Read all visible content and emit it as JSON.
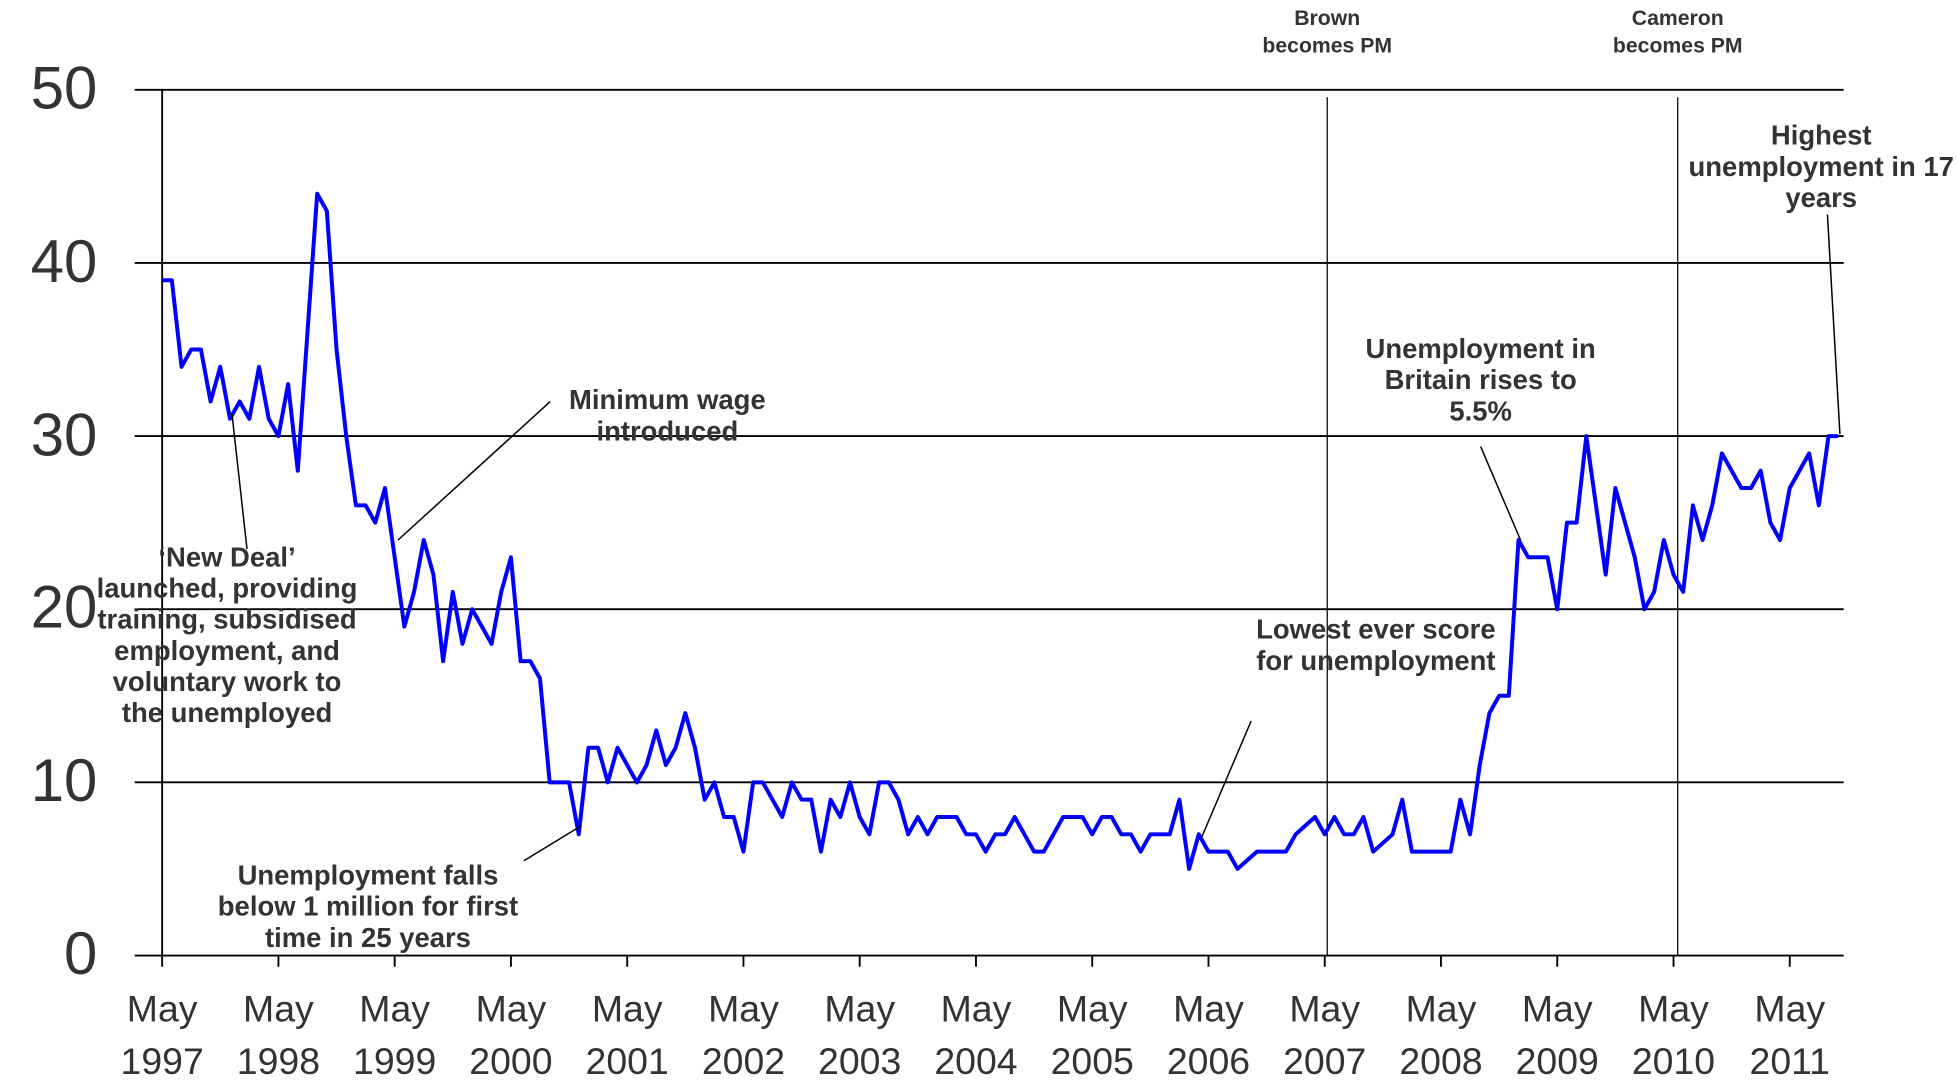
{
  "chart_data": {
    "type": "line",
    "categories": [
      "May 1997",
      null,
      null,
      null,
      null,
      null,
      null,
      null,
      null,
      null,
      null,
      null,
      "May 1998",
      null,
      null,
      null,
      null,
      null,
      null,
      null,
      null,
      null,
      null,
      null,
      "May 1999",
      null,
      null,
      null,
      null,
      null,
      null,
      null,
      null,
      null,
      null,
      null,
      "May 2000",
      null,
      null,
      null,
      null,
      null,
      null,
      null,
      null,
      null,
      null,
      null,
      "May 2001",
      null,
      null,
      null,
      null,
      null,
      null,
      null,
      null,
      null,
      null,
      null,
      "May 2002",
      null,
      null,
      null,
      null,
      null,
      null,
      null,
      null,
      null,
      null,
      null,
      "May 2003",
      null,
      null,
      null,
      null,
      null,
      null,
      null,
      null,
      null,
      null,
      null,
      "May 2004",
      null,
      null,
      null,
      null,
      null,
      null,
      null,
      null,
      null,
      null,
      null,
      "May 2005",
      null,
      null,
      null,
      null,
      null,
      null,
      null,
      null,
      null,
      null,
      null,
      "May 2006",
      null,
      null,
      null,
      null,
      null,
      null,
      null,
      null,
      null,
      null,
      null,
      "May 2007",
      null,
      null,
      null,
      null,
      null,
      null,
      null,
      null,
      null,
      null,
      null,
      "May 2008",
      null,
      null,
      null,
      null,
      null,
      null,
      null,
      null,
      null,
      null,
      null,
      "May 2009",
      null,
      null,
      null,
      null,
      null,
      null,
      null,
      null,
      null,
      null,
      null,
      "May 2010",
      null,
      null,
      null,
      null,
      null,
      null,
      null,
      null,
      null,
      null,
      null,
      "May 2011",
      null,
      null,
      null,
      null,
      null
    ],
    "series": [
      {
        "color": "#0000ff",
        "values": [
          39,
          39,
          34,
          35,
          35,
          32,
          34,
          31,
          32,
          31,
          34,
          31,
          30,
          33,
          28,
          36,
          44,
          43,
          35,
          30,
          26,
          26,
          25,
          27,
          23,
          19,
          21,
          24,
          22,
          17,
          21,
          18,
          20,
          19,
          18,
          21,
          23,
          17,
          17,
          16,
          10,
          10,
          10,
          7,
          12,
          12,
          10,
          12,
          11,
          10,
          11,
          13,
          11,
          12,
          14,
          12,
          9,
          10,
          8,
          8,
          6,
          10,
          10,
          9,
          8,
          10,
          9,
          9,
          6,
          9,
          8,
          10,
          8,
          7,
          10,
          10,
          9,
          7,
          8,
          7,
          8,
          8,
          8,
          7,
          7,
          6,
          7,
          7,
          8,
          7,
          6,
          6,
          7,
          8,
          8,
          8,
          7,
          8,
          8,
          7,
          7,
          6,
          7,
          7,
          7,
          9,
          5,
          7,
          6,
          6,
          6,
          5,
          5.5,
          6,
          6,
          6,
          6,
          7,
          7.5,
          8,
          7,
          8,
          7,
          7,
          8,
          6,
          6.5,
          7,
          9,
          6,
          6,
          6,
          6,
          6,
          9,
          7,
          11,
          14,
          15,
          15,
          24,
          23,
          23,
          23,
          20,
          25,
          25,
          30,
          26,
          22,
          27,
          25,
          23,
          20,
          21,
          24,
          22,
          21,
          26,
          24,
          26,
          29,
          28,
          27,
          27,
          28,
          25,
          24,
          27,
          28,
          29,
          26,
          30,
          30
        ]
      }
    ],
    "ylim": [
      0,
      50
    ],
    "yticks": [
      0,
      10,
      20,
      30,
      40,
      50
    ],
    "grid": true,
    "annotations": [
      "Brown becomes PM",
      "Cameron becomes PM",
      "Highest unemployment in 17 years",
      "Unemployment in Britain rises to 5.5%",
      "Lowest ever score for unemployment",
      "Minimum wage introduced",
      "‘New Deal’ launched, providing training, subsidised employment, and voluntary work to the unemployed",
      "Unemployment falls below 1 million for first time in 25 years"
    ]
  }
}
